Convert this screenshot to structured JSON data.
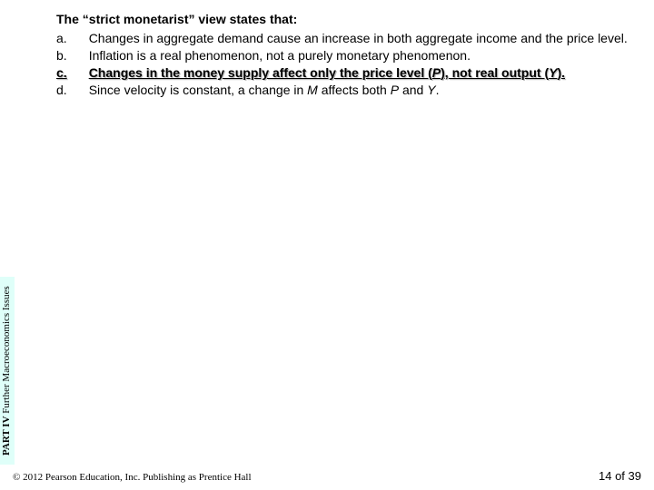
{
  "question_prompt": "The “strict monetarist” view states that:",
  "options": [
    {
      "letter": "a.",
      "text": "Changes in aggregate demand cause an increase in both aggregate income and the price level.",
      "correct": false
    },
    {
      "letter": "b.",
      "text": "Inflation is a real phenomenon, not a purely monetary phenomenon.",
      "correct": false
    },
    {
      "letter": "c.",
      "html": "Changes in the money supply affect only the price level (<em>P</em>), not real output (<em>Y</em>).",
      "correct": true
    },
    {
      "letter": "d.",
      "html": "Since velocity is constant, a change in <em>M</em> affects both <em>P</em> and <em>Y</em>.",
      "correct": false
    }
  ],
  "sidebar": {
    "part": "PART IV",
    "title": "Further Macroeconomics Issues"
  },
  "footer": {
    "copyright": "© 2012 Pearson Education, Inc. Publishing as Prentice Hall",
    "page": "14 of 39"
  },
  "colors": {
    "sidebar_bg": "#dffff9"
  }
}
